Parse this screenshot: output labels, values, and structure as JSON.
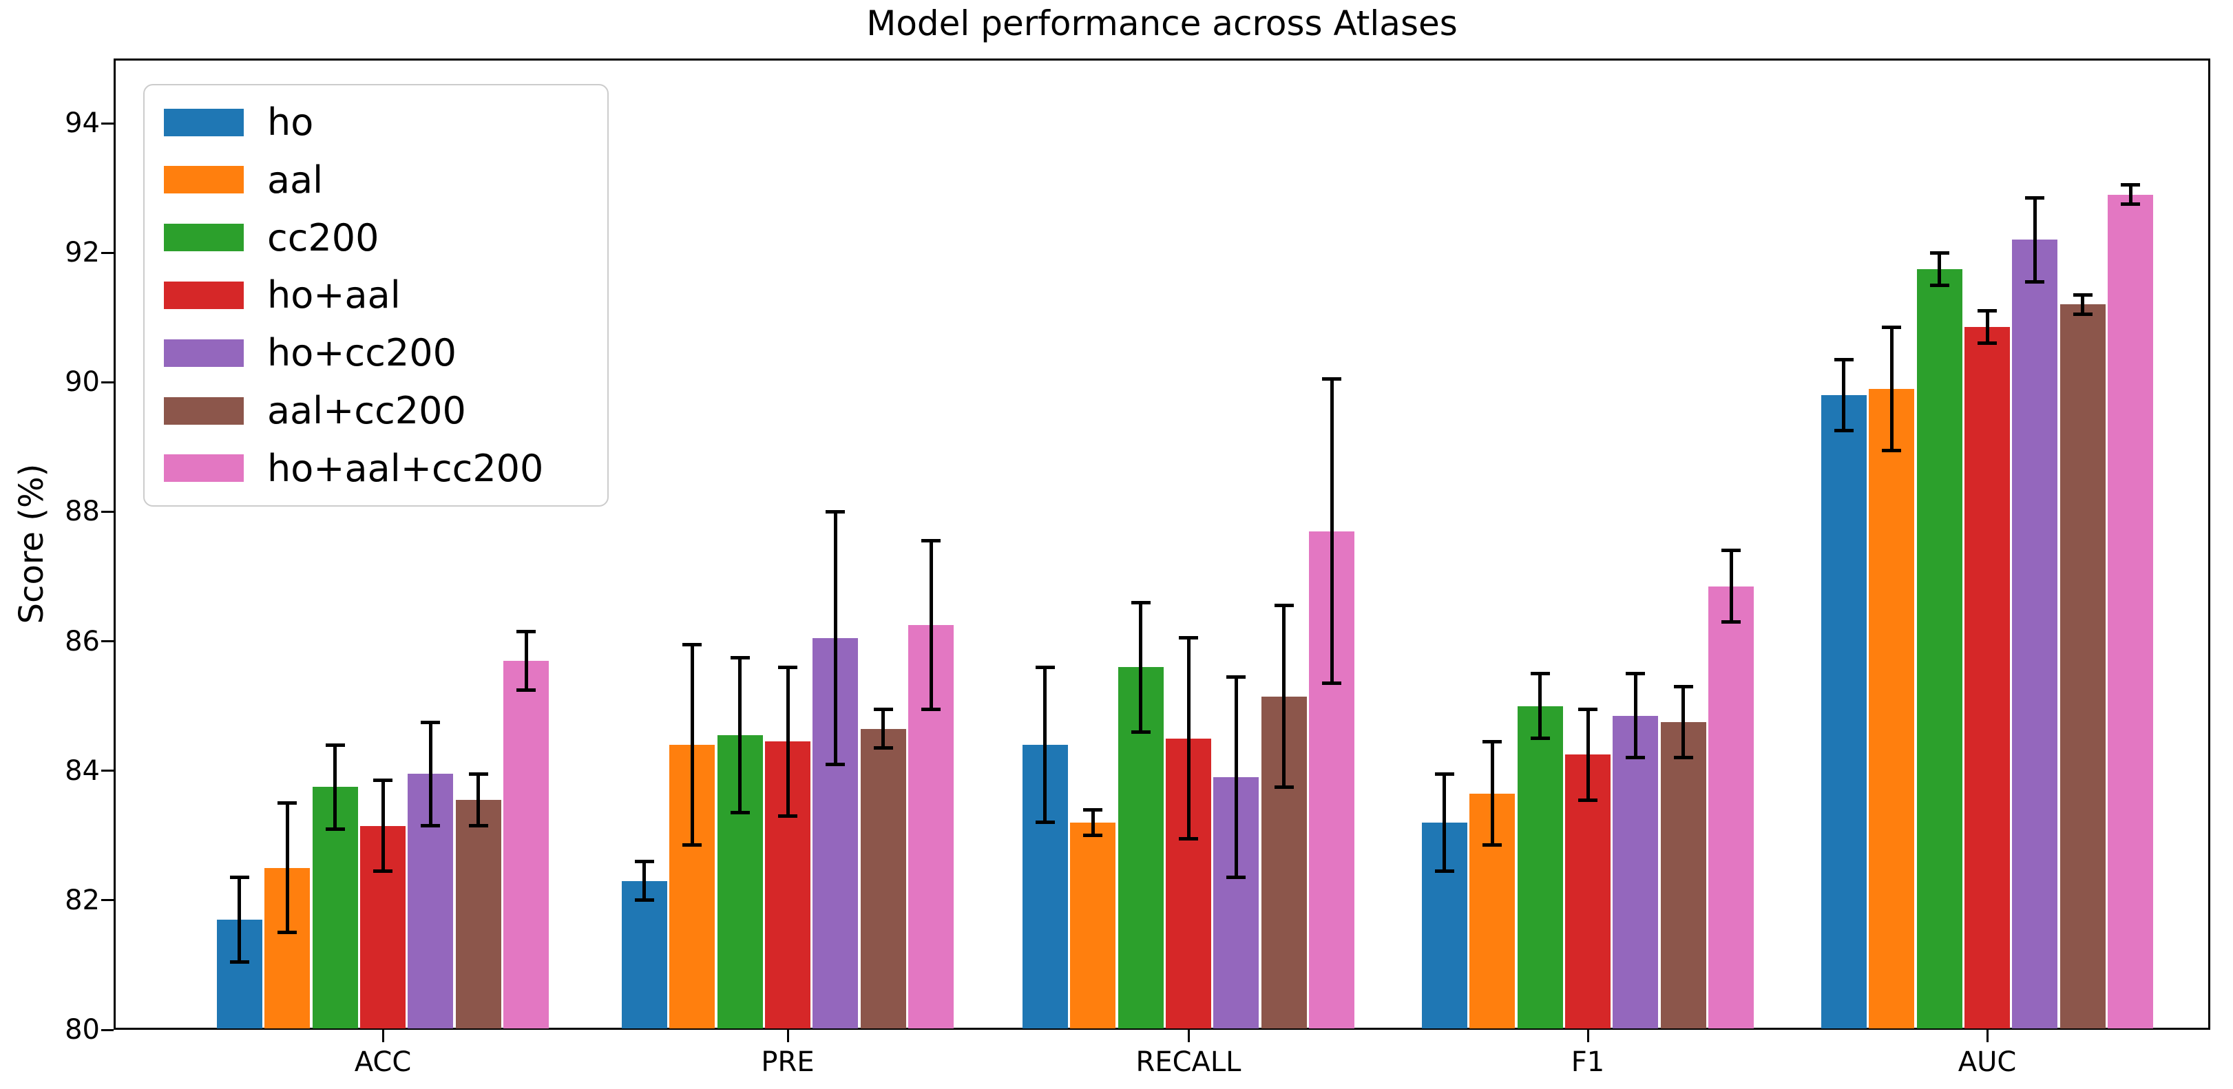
{
  "chart_data": {
    "type": "bar",
    "title": "Model performance across Atlases",
    "ylabel": "Score (%)",
    "xlabel": "",
    "categories": [
      "ACC",
      "PRE",
      "RECALL",
      "F1",
      "AUC"
    ],
    "ylim": [
      80,
      95
    ],
    "yticks": [
      80,
      82,
      84,
      86,
      88,
      90,
      92,
      94
    ],
    "grid": false,
    "legend_position": "upper left",
    "error_bars": true,
    "axis_color": "#000000",
    "background_color": "#ffffff",
    "legend_border_color": "#cccccc",
    "series": [
      {
        "name": "ho",
        "color": "#1f77b4",
        "values": [
          81.7,
          82.3,
          84.4,
          83.2,
          89.8
        ],
        "errors": [
          0.65,
          0.3,
          1.2,
          0.75,
          0.55
        ]
      },
      {
        "name": "aal",
        "color": "#ff7f0e",
        "values": [
          82.5,
          84.4,
          83.2,
          83.65,
          89.9
        ],
        "errors": [
          1.0,
          1.55,
          0.2,
          0.8,
          0.95
        ]
      },
      {
        "name": "cc200",
        "color": "#2ca02c",
        "values": [
          83.75,
          84.55,
          85.6,
          85.0,
          91.75
        ],
        "errors": [
          0.65,
          1.2,
          1.0,
          0.5,
          0.25
        ]
      },
      {
        "name": "ho+aal",
        "color": "#d62728",
        "values": [
          83.15,
          84.45,
          84.5,
          84.25,
          90.85
        ],
        "errors": [
          0.7,
          1.15,
          1.55,
          0.7,
          0.25
        ]
      },
      {
        "name": "ho+cc200",
        "color": "#9467bd",
        "values": [
          83.95,
          86.05,
          83.9,
          84.85,
          92.2
        ],
        "errors": [
          0.8,
          1.95,
          1.55,
          0.65,
          0.65
        ]
      },
      {
        "name": "aal+cc200",
        "color": "#8c564b",
        "values": [
          83.55,
          84.65,
          85.15,
          84.75,
          91.2
        ],
        "errors": [
          0.4,
          0.3,
          1.4,
          0.55,
          0.15
        ]
      },
      {
        "name": "ho+aal+cc200",
        "color": "#e377c2",
        "values": [
          85.7,
          86.25,
          87.7,
          86.85,
          92.9
        ],
        "errors": [
          0.45,
          1.3,
          2.35,
          0.55,
          0.15
        ]
      }
    ]
  }
}
